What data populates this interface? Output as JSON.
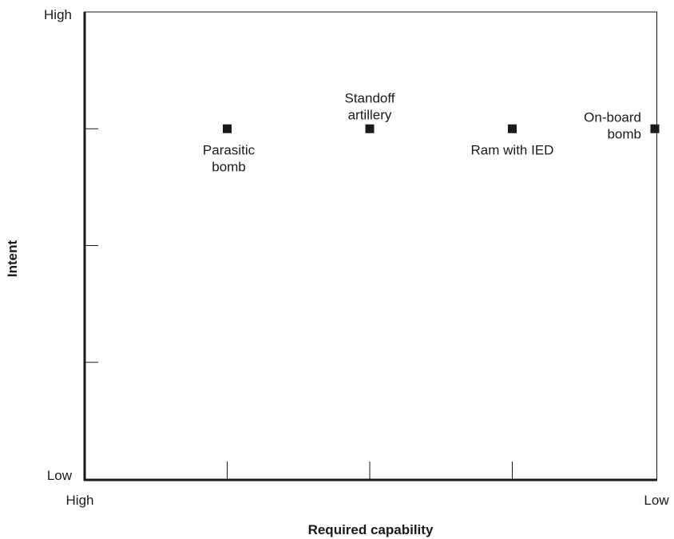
{
  "chart_data": {
    "type": "scatter",
    "title": "",
    "xlabel": "Required capability",
    "ylabel": "Intent",
    "xlim": [
      0,
      4
    ],
    "ylim": [
      0,
      4
    ],
    "x_axis_reversed": true,
    "x_ends": {
      "left": "High",
      "right": "Low"
    },
    "y_ends": {
      "bottom": "Low",
      "top": "High"
    },
    "x_minor_ticks": [
      1,
      2,
      3
    ],
    "y_minor_ticks": [
      1,
      2,
      3
    ],
    "grid": false,
    "marker_color": "#1a1a1a",
    "axis_color": "#1a1a1a",
    "points": [
      {
        "label": "Parasitic bomb",
        "x": 1,
        "y": 3,
        "label_pos": "below"
      },
      {
        "label": "Standoff artillery",
        "x": 2,
        "y": 3,
        "label_pos": "above"
      },
      {
        "label": "Ram with IED",
        "x": 3,
        "y": 3,
        "label_pos": "below"
      },
      {
        "label": "On-board bomb",
        "x": 4,
        "y": 3,
        "label_pos": "left"
      }
    ]
  }
}
